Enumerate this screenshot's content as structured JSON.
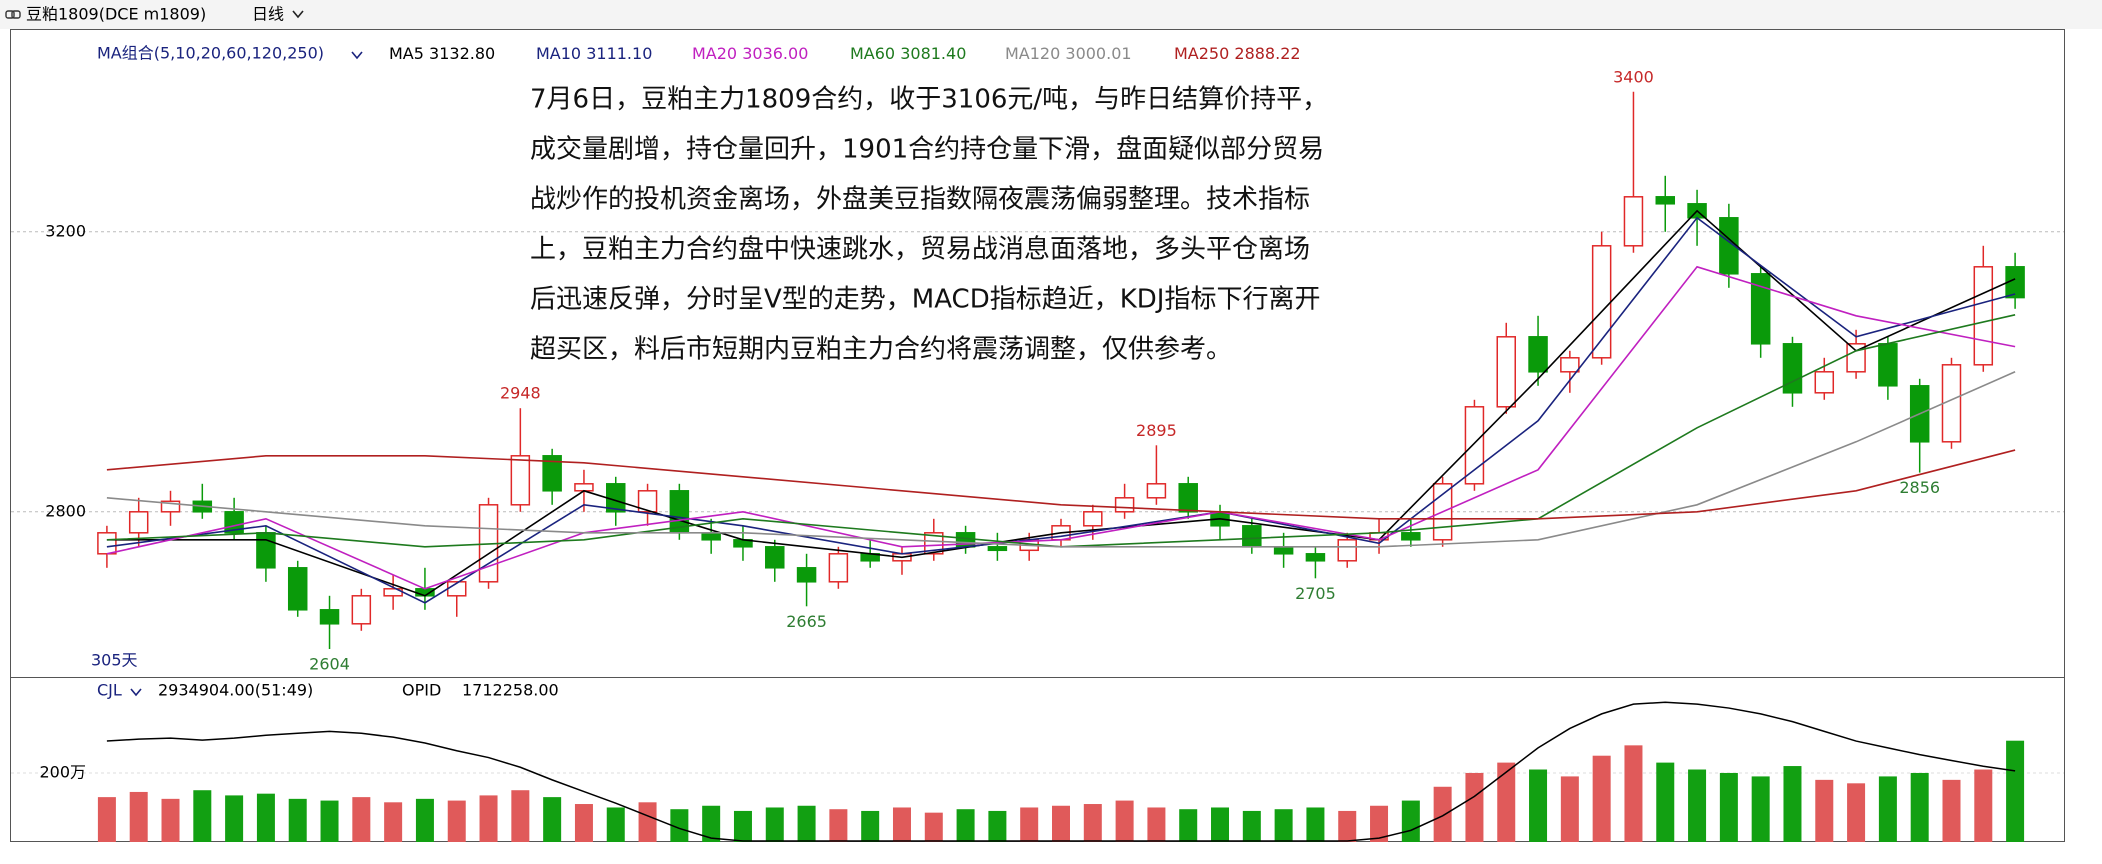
{
  "header": {
    "symbol": "豆粕1809(DCE m1809)",
    "period": "日线"
  },
  "chart_data": [
    {
      "type": "candlestick",
      "ma_label": "MA组合(5,10,20,60,120,250)",
      "days_label": "305天",
      "ylim": [
        2564,
        3474
      ],
      "yticks": [
        2800,
        3200
      ],
      "grid": true,
      "up_color": "#e02828",
      "down_color": "#0a9a0a",
      "candles": [
        [
          2740,
          2780,
          2720,
          2770
        ],
        [
          2770,
          2820,
          2750,
          2800
        ],
        [
          2800,
          2830,
          2780,
          2815
        ],
        [
          2815,
          2840,
          2790,
          2800
        ],
        [
          2800,
          2820,
          2760,
          2770
        ],
        [
          2770,
          2780,
          2700,
          2720
        ],
        [
          2720,
          2730,
          2650,
          2660
        ],
        [
          2660,
          2680,
          2604,
          2640
        ],
        [
          2640,
          2690,
          2630,
          2680
        ],
        [
          2680,
          2710,
          2660,
          2690
        ],
        [
          2690,
          2720,
          2660,
          2680
        ],
        [
          2680,
          2700,
          2650,
          2700
        ],
        [
          2700,
          2820,
          2690,
          2810
        ],
        [
          2810,
          2948,
          2800,
          2880
        ],
        [
          2880,
          2890,
          2810,
          2830
        ],
        [
          2830,
          2860,
          2800,
          2840
        ],
        [
          2840,
          2850,
          2780,
          2800
        ],
        [
          2800,
          2840,
          2780,
          2830
        ],
        [
          2830,
          2840,
          2760,
          2770
        ],
        [
          2770,
          2790,
          2740,
          2760
        ],
        [
          2760,
          2780,
          2730,
          2750
        ],
        [
          2750,
          2760,
          2700,
          2720
        ],
        [
          2720,
          2740,
          2665,
          2700
        ],
        [
          2700,
          2750,
          2690,
          2740
        ],
        [
          2740,
          2760,
          2720,
          2730
        ],
        [
          2730,
          2750,
          2710,
          2740
        ],
        [
          2740,
          2790,
          2730,
          2770
        ],
        [
          2770,
          2780,
          2740,
          2750
        ],
        [
          2750,
          2770,
          2730,
          2745
        ],
        [
          2745,
          2770,
          2730,
          2760
        ],
        [
          2760,
          2790,
          2750,
          2780
        ],
        [
          2780,
          2810,
          2760,
          2800
        ],
        [
          2800,
          2840,
          2790,
          2820
        ],
        [
          2820,
          2895,
          2810,
          2840
        ],
        [
          2840,
          2850,
          2790,
          2800
        ],
        [
          2800,
          2810,
          2760,
          2780
        ],
        [
          2780,
          2790,
          2740,
          2750
        ],
        [
          2750,
          2770,
          2720,
          2740
        ],
        [
          2740,
          2750,
          2705,
          2730
        ],
        [
          2730,
          2770,
          2720,
          2760
        ],
        [
          2760,
          2790,
          2740,
          2770
        ],
        [
          2770,
          2790,
          2750,
          2760
        ],
        [
          2760,
          2850,
          2750,
          2840
        ],
        [
          2840,
          2960,
          2830,
          2950
        ],
        [
          2950,
          3070,
          2940,
          3050
        ],
        [
          3050,
          3080,
          2980,
          3000
        ],
        [
          3000,
          3030,
          2970,
          3020
        ],
        [
          3020,
          3200,
          3010,
          3180
        ],
        [
          3180,
          3400,
          3170,
          3250
        ],
        [
          3250,
          3280,
          3200,
          3240
        ],
        [
          3240,
          3260,
          3180,
          3220
        ],
        [
          3220,
          3240,
          3120,
          3140
        ],
        [
          3140,
          3150,
          3020,
          3040
        ],
        [
          3040,
          3050,
          2950,
          2970
        ],
        [
          2970,
          3020,
          2960,
          3000
        ],
        [
          3000,
          3060,
          2990,
          3040
        ],
        [
          3040,
          3050,
          2960,
          2980
        ],
        [
          2980,
          2990,
          2856,
          2900
        ],
        [
          2900,
          3020,
          2890,
          3010
        ],
        [
          3010,
          3180,
          3000,
          3150
        ],
        [
          3150,
          3170,
          3090,
          3106
        ]
      ],
      "annotations": [
        {
          "value": 2948,
          "candle": 13
        },
        {
          "value": 2604,
          "candle": 7
        },
        {
          "value": 2665,
          "candle": 22
        },
        {
          "value": 2895,
          "candle": 33
        },
        {
          "value": 2705,
          "candle": 38
        },
        {
          "value": 3400,
          "candle": 48
        },
        {
          "value": 2856,
          "candle": 57
        }
      ],
      "ma_x": [
        0,
        5,
        10,
        15,
        20,
        25,
        30,
        35,
        40,
        45,
        50,
        55,
        60
      ],
      "series": [
        {
          "name": "MA5",
          "color": "#000000",
          "value_label": "3132.80",
          "values": [
            2760,
            2760,
            2680,
            2830,
            2760,
            2735,
            2770,
            2790,
            2760,
            2990,
            3230,
            3030,
            3132.8
          ]
        },
        {
          "name": "MA10",
          "color": "#1a237e",
          "value_label": "3111.10",
          "values": [
            2750,
            2780,
            2670,
            2810,
            2780,
            2740,
            2765,
            2800,
            2755,
            2930,
            3220,
            3050,
            3111.1
          ]
        },
        {
          "name": "MA20",
          "color": "#c020c0",
          "value_label": "3036.00",
          "values": [
            2740,
            2790,
            2690,
            2770,
            2800,
            2750,
            2760,
            2800,
            2760,
            2860,
            3150,
            3080,
            3036
          ]
        },
        {
          "name": "MA60",
          "color": "#1e7a1e",
          "value_label": "3081.40",
          "values": [
            2760,
            2770,
            2750,
            2760,
            2790,
            2770,
            2750,
            2760,
            2770,
            2790,
            2920,
            3030,
            3081.4
          ]
        },
        {
          "name": "MA120",
          "color": "#8a8a8a",
          "value_label": "3000.01",
          "values": [
            2820,
            2800,
            2780,
            2770,
            2770,
            2760,
            2750,
            2750,
            2750,
            2760,
            2810,
            2900,
            3000.01
          ]
        },
        {
          "name": "MA250",
          "color": "#b02020",
          "value_label": "2888.22",
          "values": [
            2860,
            2880,
            2880,
            2870,
            2850,
            2830,
            2810,
            2800,
            2790,
            2790,
            2800,
            2830,
            2888.22
          ]
        }
      ],
      "note": [
        "7月6日，豆粕主力1809合约，收于3106元/吨，与昨日结算价持平，",
        "成交量剧增，持仓量回升，1901合约持仓量下滑，盘面疑似部分贸易",
        "战炒作的投机资金离场，外盘美豆指数隔夜震荡偏弱整理。技术指标",
        "上，豆粕主力合约盘中快速跳水，贸易战消息面落地，多头平仓离场",
        "后迅速反弹，分时呈V型的走势，MACD指标趋近，KDJ指标下行离开",
        "超买区，料后市短期内豆粕主力合约将震荡调整，仅供参考。"
      ]
    },
    {
      "type": "bar",
      "name": "CJL",
      "value_label": "2934904.00(51:49)",
      "ylim": [
        0,
        4780000
      ],
      "yticks": [
        {
          "value": 2000000,
          "label": "200万"
        }
      ],
      "values": [
        1300000,
        1450000,
        1250000,
        1500000,
        1350000,
        1400000,
        1250000,
        1200000,
        1300000,
        1150000,
        1250000,
        1200000,
        1350000,
        1500000,
        1300000,
        1100000,
        1000000,
        1150000,
        950000,
        1050000,
        900000,
        1000000,
        1050000,
        950000,
        900000,
        1000000,
        850000,
        950000,
        900000,
        1000000,
        1050000,
        1100000,
        1200000,
        1000000,
        950000,
        1000000,
        900000,
        950000,
        1000000,
        900000,
        1050000,
        1200000,
        1600000,
        2000000,
        2300000,
        2100000,
        1900000,
        2500000,
        2800000,
        2300000,
        2100000,
        2000000,
        1900000,
        2200000,
        1800000,
        1700000,
        1900000,
        2000000,
        1800000,
        2100000,
        2934904
      ],
      "y2lim": [
        980000,
        2680000
      ],
      "series": [
        {
          "name": "OPID",
          "axis": "y2",
          "color": "#000000",
          "value_label": "1712258.00",
          "values": [
            2020000,
            2040000,
            2050000,
            2030000,
            2050000,
            2080000,
            2100000,
            2120000,
            2100000,
            2060000,
            2000000,
            1920000,
            1850000,
            1750000,
            1620000,
            1500000,
            1380000,
            1250000,
            1120000,
            1020000,
            990000,
            990000,
            990000,
            990000,
            990000,
            990000,
            990000,
            990000,
            990000,
            990000,
            990000,
            990000,
            990000,
            990000,
            990000,
            990000,
            990000,
            990000,
            990000,
            990000,
            1020000,
            1100000,
            1250000,
            1450000,
            1700000,
            1950000,
            2150000,
            2300000,
            2400000,
            2420000,
            2400000,
            2360000,
            2300000,
            2220000,
            2120000,
            2020000,
            1950000,
            1880000,
            1820000,
            1760000,
            1712258
          ]
        }
      ]
    }
  ]
}
